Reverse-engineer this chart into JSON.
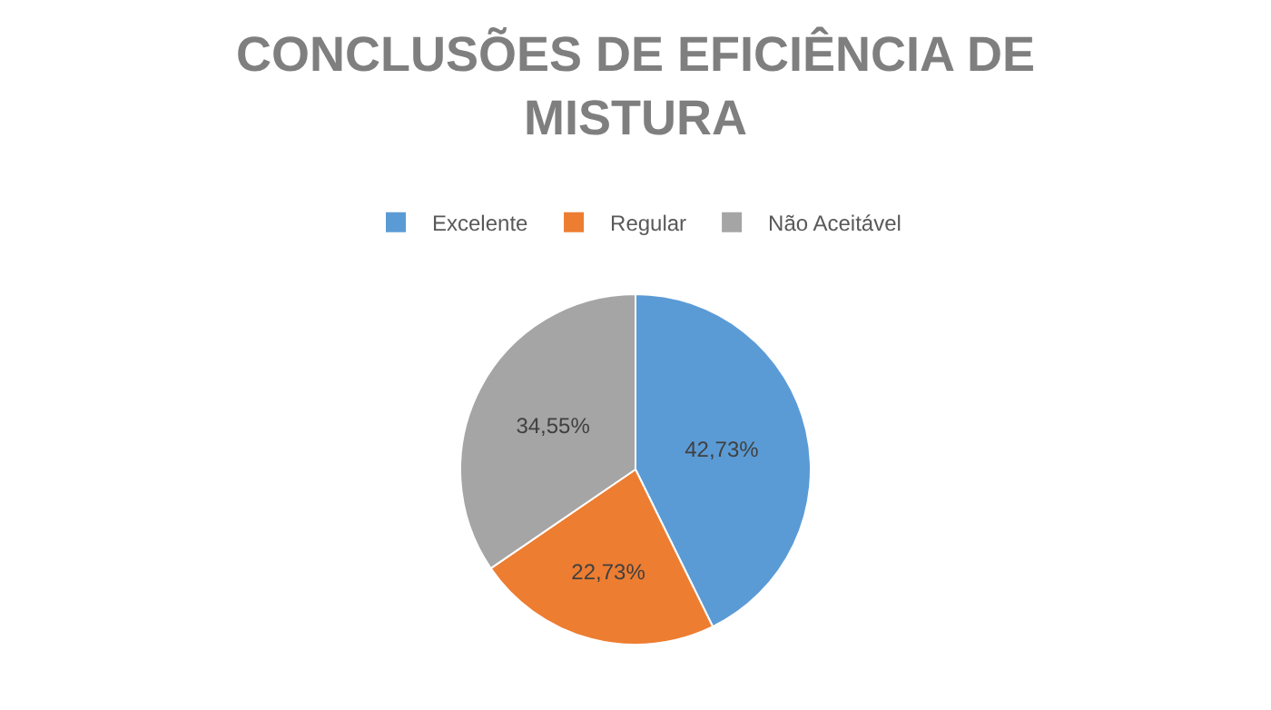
{
  "chart_data": {
    "type": "pie",
    "title": "CONCLUSÕES DE EFICIÊNCIA DE MISTURA",
    "categories": [
      "Excelente",
      "Regular",
      "Não Aceitável"
    ],
    "values": [
      42.73,
      22.73,
      34.55
    ],
    "colors": [
      "#5b9bd5",
      "#ed7d31",
      "#a5a5a5"
    ],
    "value_labels": [
      "42,73%",
      "22,73%",
      "34,55%"
    ],
    "legend": "top"
  }
}
